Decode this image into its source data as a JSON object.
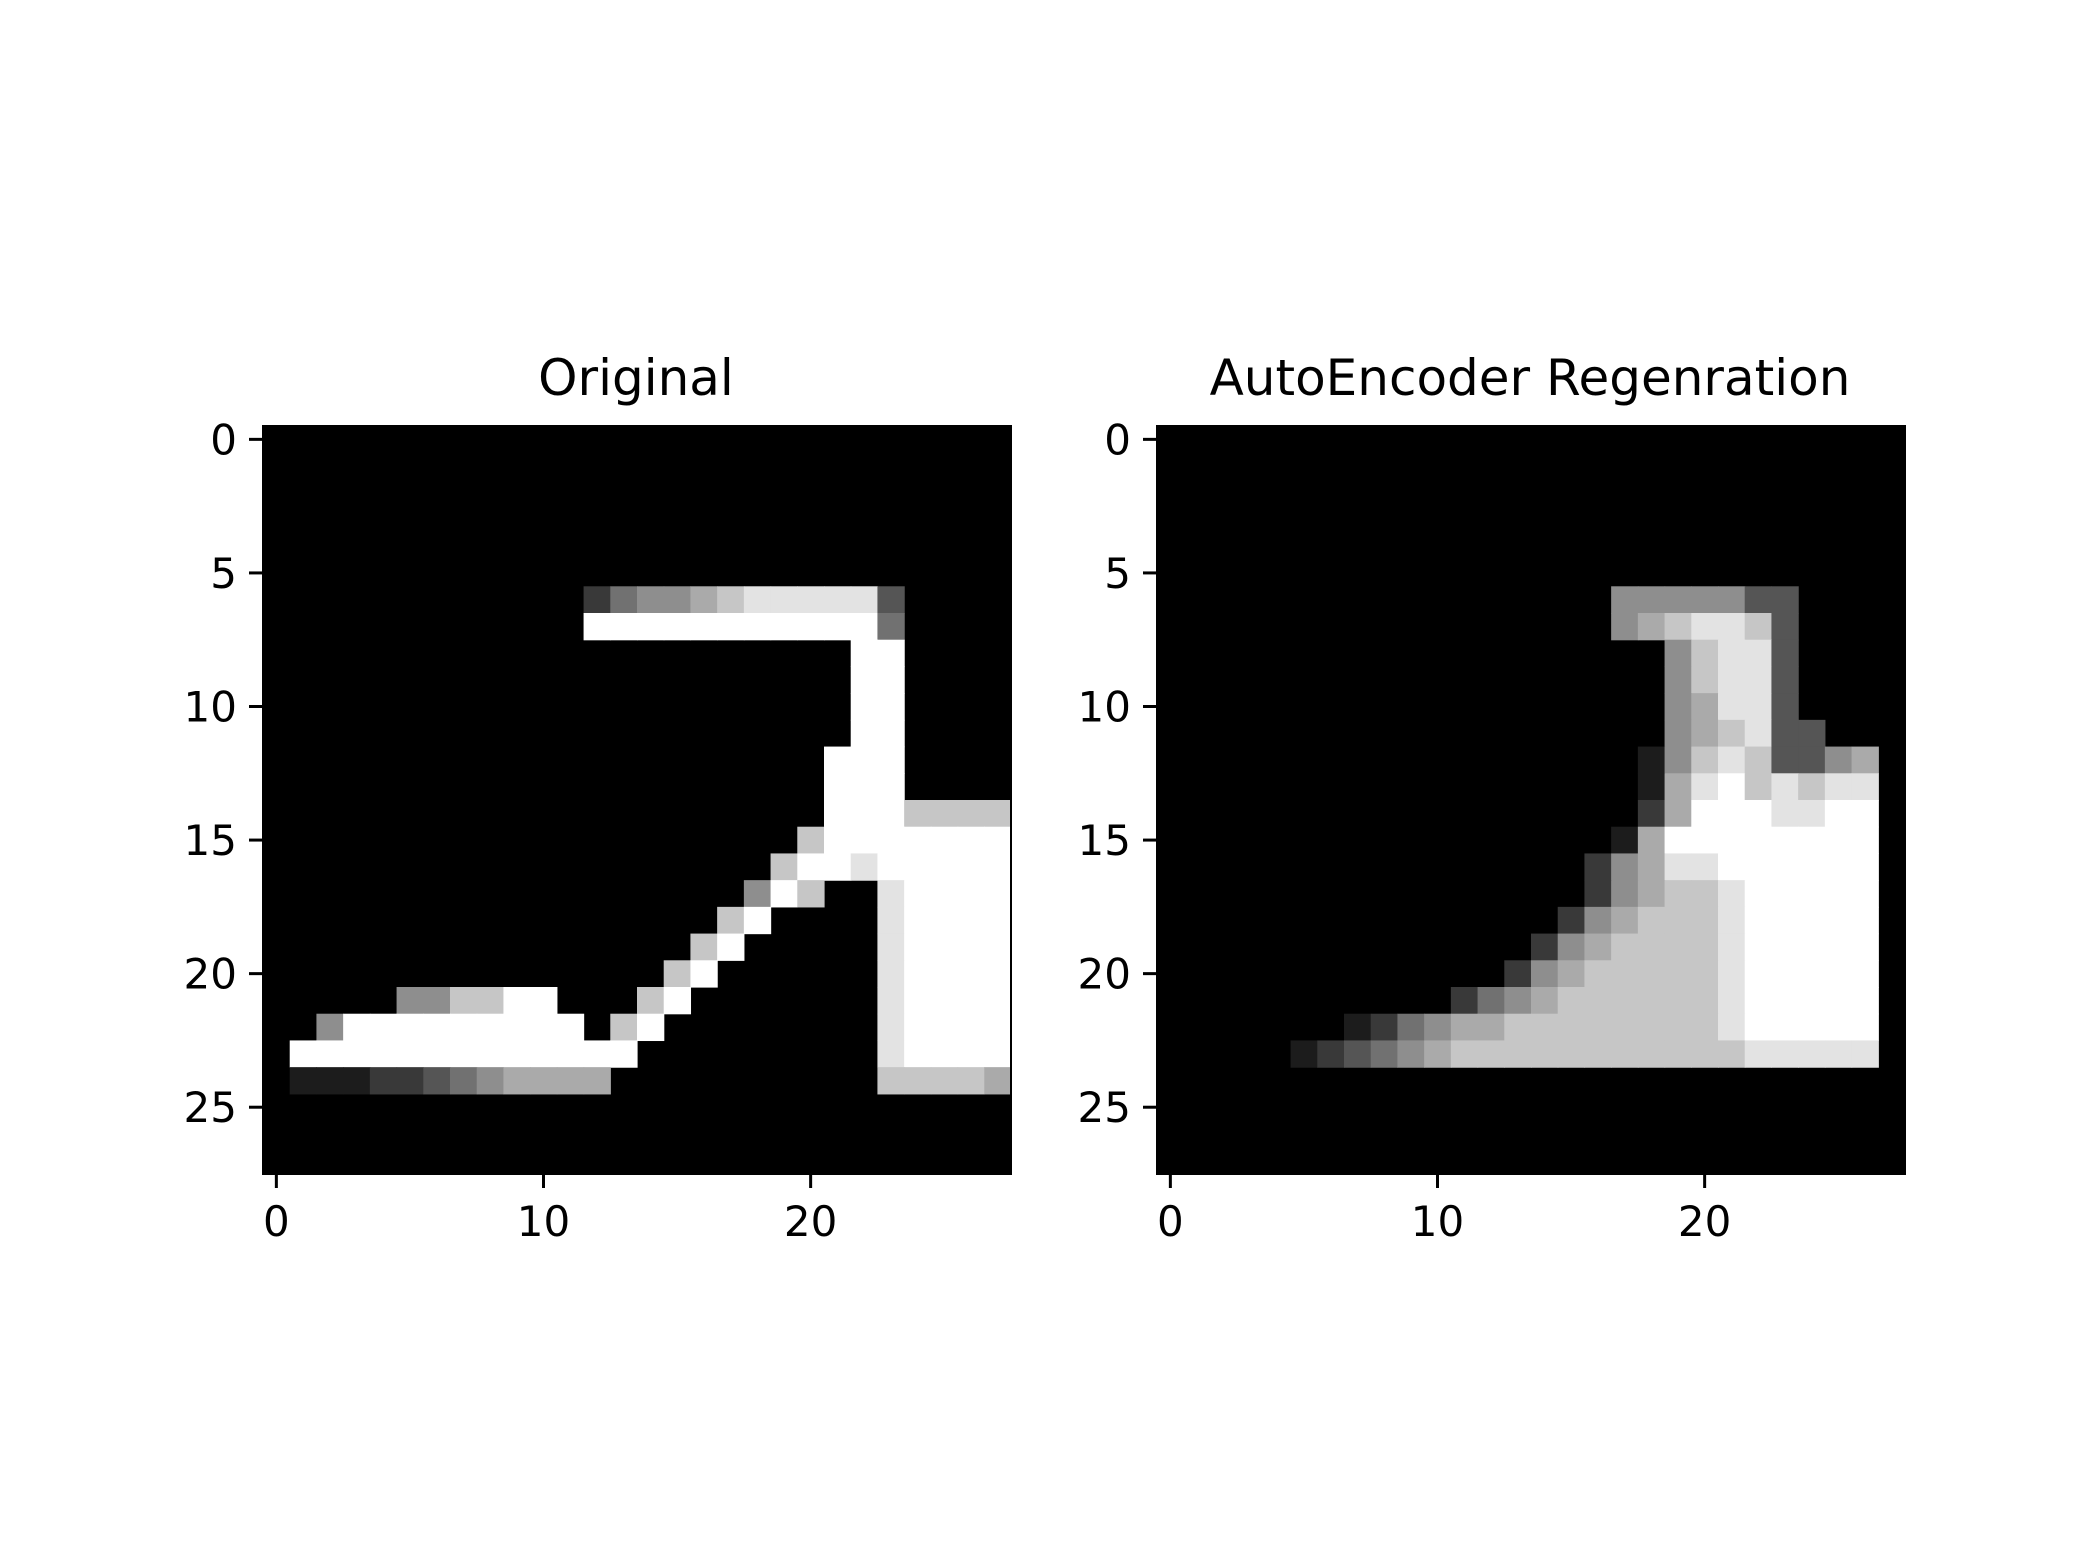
{
  "chart_data": [
    {
      "type": "heatmap",
      "title": "Original",
      "colormap": "gray",
      "grid": false,
      "xlim": [
        -0.5,
        27.5
      ],
      "ylim": [
        27.5,
        -0.5
      ],
      "xticks": [
        0,
        10,
        20
      ],
      "yticks": [
        0,
        5,
        10,
        15,
        20,
        25
      ],
      "size": [
        28,
        28
      ],
      "rows": [
        "0000000000000000000000000000",
        "0000000000000000000000000000",
        "0000000000000000000000000000",
        "0000000000000000000000000000",
        "0000000000000000000000000000",
        "0000000000000000000000000000",
        "0000000000002455678888830000",
        "0000000000009999999999940000",
        "0000000000000000000000990000",
        "0000000000000000000000990000",
        "0000000000000000000000990000",
        "0000000000000000000000990000",
        "0000000000000000000009990000",
        "0000000000000000000009990000",
        "0000000000000000000009997777",
        "0000000000000000000079999999",
        "0000000000000000000799899999",
        "0000000000000000005970089999",
        "0000000000000000079000089999",
        "0000000000000000790000089999",
        "0000000000000007900000089999",
        "0000055779900079000000089999",
        "0059999999990790000000089999",
        "0999999999999900000000089999",
        "0111223456666000000000077776",
        "0000000000000000000000000000",
        "0000000000000000000000000000",
        "0000000000000000000000000000"
      ]
    },
    {
      "type": "heatmap",
      "title": "AutoEncoder Regenration",
      "colormap": "gray",
      "grid": false,
      "xlim": [
        -0.5,
        27.5
      ],
      "ylim": [
        27.5,
        -0.5
      ],
      "xticks": [
        0,
        10,
        20
      ],
      "yticks": [
        0,
        5,
        10,
        15,
        20,
        25
      ],
      "size": [
        28,
        28
      ],
      "rows": [
        "0000000000000000000000000000",
        "0000000000000000000000000000",
        "0000000000000000000000000000",
        "0000000000000000000000000000",
        "0000000000000000000000000000",
        "0000000000000000000000000000",
        "0000000000000000055555330000",
        "0000000000000000056788730000",
        "0000000000000000000578830000",
        "0000000000000000000578830000",
        "0000000000000000000568830000",
        "0000000000000000000567833000",
        "0000000000000000001578733560",
        "0000000000000000001689787880",
        "0000000000000000002699988990",
        "0000000000000000016999999990",
        "0000000000000000256889999990",
        "0000000000000000256778999990",
        "0000000000000002567778999990",
        "0000000000000025677778999990",
        "0000000000000256777778999990",
        "0000000000024567777778999990",
        "0000000124566777777778999990",
        "0000012345677777777777888880",
        "0000000000000000000000000000",
        "0000000000000000000000000000",
        "0000000000000000000000000000",
        "0000000000000000000000000000"
      ]
    }
  ]
}
